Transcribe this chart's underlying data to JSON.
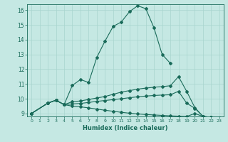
{
  "xlabel": "Humidex (Indice chaleur)",
  "background_color": "#c5e8e3",
  "grid_color": "#a8d5ce",
  "line_color": "#1a6b5a",
  "xlim": [
    -0.5,
    23.5
  ],
  "ylim": [
    8.8,
    16.4
  ],
  "yticks": [
    9,
    10,
    11,
    12,
    13,
    14,
    15,
    16
  ],
  "xticks": [
    0,
    1,
    2,
    3,
    4,
    5,
    6,
    7,
    8,
    9,
    10,
    11,
    12,
    13,
    14,
    15,
    16,
    17,
    18,
    19,
    20,
    21,
    22,
    23
  ],
  "lines": [
    {
      "x": [
        0,
        2,
        3,
        4,
        5,
        6,
        7,
        8,
        9,
        10,
        11,
        12,
        13,
        14,
        15,
        16,
        17
      ],
      "y": [
        9.0,
        9.7,
        9.9,
        9.6,
        10.9,
        11.3,
        11.1,
        12.8,
        13.9,
        14.9,
        15.2,
        15.9,
        16.3,
        16.1,
        14.8,
        13.0,
        12.4
      ]
    },
    {
      "x": [
        0,
        2,
        3,
        4,
        5,
        6,
        7,
        8,
        9,
        10,
        11,
        12,
        13,
        14,
        15,
        16,
        17,
        18,
        19,
        20,
        21,
        22,
        23
      ],
      "y": [
        9.0,
        9.7,
        9.9,
        9.6,
        9.8,
        9.85,
        9.95,
        10.05,
        10.15,
        10.3,
        10.45,
        10.55,
        10.65,
        10.72,
        10.78,
        10.82,
        10.88,
        11.5,
        10.5,
        9.4,
        8.8,
        8.75,
        8.7
      ]
    },
    {
      "x": [
        0,
        2,
        3,
        4,
        5,
        6,
        7,
        8,
        9,
        10,
        11,
        12,
        13,
        14,
        15,
        16,
        17,
        18,
        19,
        20,
        21,
        22,
        23
      ],
      "y": [
        9.0,
        9.7,
        9.9,
        9.6,
        9.65,
        9.68,
        9.75,
        9.82,
        9.88,
        9.94,
        10.0,
        10.07,
        10.13,
        10.18,
        10.22,
        10.25,
        10.27,
        10.5,
        9.7,
        9.35,
        8.8,
        8.75,
        8.7
      ]
    },
    {
      "x": [
        0,
        2,
        3,
        4,
        5,
        6,
        7,
        8,
        9,
        10,
        11,
        12,
        13,
        14,
        15,
        16,
        17,
        18,
        19,
        20,
        21,
        22,
        23
      ],
      "y": [
        9.0,
        9.7,
        9.9,
        9.6,
        9.5,
        9.45,
        9.38,
        9.3,
        9.22,
        9.15,
        9.08,
        9.02,
        8.97,
        8.93,
        8.9,
        8.87,
        8.84,
        8.82,
        8.8,
        9.0,
        8.8,
        8.75,
        8.7
      ]
    }
  ]
}
